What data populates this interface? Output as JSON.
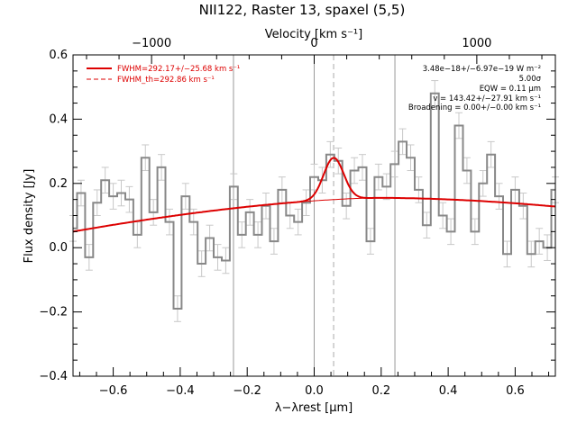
{
  "chart_data": {
    "type": "line",
    "title": "NII122, Raster 13, spaxel (5,5)",
    "xlabel": "λ−λrest [μm]",
    "ylabel": "Flux density [Jy]",
    "top_axis_label": "Velocity [km s⁻¹]",
    "xlim": [
      -0.72,
      0.72
    ],
    "ylim": [
      -0.4,
      0.6
    ],
    "x_ticks": [
      -0.6,
      -0.4,
      -0.2,
      0.0,
      0.2,
      0.4,
      0.6
    ],
    "x_tick_labels": [
      "−0.6",
      "−0.4",
      "−0.2",
      "0.0",
      "0.2",
      "0.4",
      "0.6"
    ],
    "y_ticks": [
      -0.4,
      -0.2,
      0.0,
      0.2,
      0.4,
      0.6
    ],
    "y_tick_labels": [
      "−0.4",
      "−0.2",
      "0.0",
      "0.2",
      "0.4",
      "0.6"
    ],
    "top_ticks_wavelength": [
      -0.4855,
      0.0,
      0.4855
    ],
    "top_tick_labels": [
      "−1000",
      "0",
      "1000"
    ],
    "vertical_lines": [
      -0.241,
      0.0,
      0.241
    ],
    "dashed_vertical_line": 0.058,
    "legend": {
      "placement": "top-left",
      "solid": "FWHM=292.17+/−25.68 km s⁻¹",
      "dashed": "FWHM_th=292.86 km s⁻¹"
    },
    "annotations": [
      "3.48e−18+/−6.97e−19 W m⁻²",
      "5.00σ",
      "EQW = 0.11 μm",
      "v = 143.42+/−27.91 km s⁻¹",
      "Broadening = 0.00+/−0.00 km s⁻¹"
    ],
    "series": [
      {
        "style": "step-with-errors",
        "color": "#888888",
        "x": [
          -0.72,
          -0.696,
          -0.672,
          -0.648,
          -0.624,
          -0.6,
          -0.576,
          -0.552,
          -0.528,
          -0.504,
          -0.48,
          -0.456,
          -0.432,
          -0.408,
          -0.384,
          -0.36,
          -0.336,
          -0.312,
          -0.288,
          -0.264,
          -0.24,
          -0.216,
          -0.192,
          -0.168,
          -0.144,
          -0.12,
          -0.096,
          -0.072,
          -0.048,
          -0.024,
          0.0,
          0.024,
          0.048,
          0.072,
          0.096,
          0.12,
          0.144,
          0.168,
          0.192,
          0.216,
          0.24,
          0.264,
          0.288,
          0.312,
          0.336,
          0.36,
          0.384,
          0.408,
          0.432,
          0.456,
          0.48,
          0.504,
          0.528,
          0.552,
          0.576,
          0.6,
          0.624,
          0.648,
          0.672,
          0.696,
          0.72
        ],
        "y": [
          0.06,
          0.17,
          -0.03,
          0.14,
          0.21,
          0.16,
          0.17,
          0.15,
          0.04,
          0.28,
          0.11,
          0.25,
          0.08,
          -0.19,
          0.16,
          0.08,
          -0.05,
          0.03,
          -0.03,
          -0.04,
          0.19,
          0.04,
          0.11,
          0.04,
          0.13,
          0.02,
          0.18,
          0.1,
          0.08,
          0.14,
          0.22,
          0.21,
          0.29,
          0.27,
          0.13,
          0.24,
          0.25,
          0.02,
          0.22,
          0.19,
          0.26,
          0.33,
          0.28,
          0.18,
          0.07,
          0.48,
          0.1,
          0.05,
          0.38,
          0.24,
          0.05,
          0.2,
          0.29,
          0.16,
          -0.02,
          0.18,
          0.13,
          -0.02,
          0.02,
          0.0,
          0.18
        ],
        "err": [
          0.04,
          0.04,
          0.04,
          0.04,
          0.04,
          0.04,
          0.04,
          0.04,
          0.04,
          0.04,
          0.04,
          0.04,
          0.04,
          0.04,
          0.04,
          0.04,
          0.04,
          0.04,
          0.04,
          0.04,
          0.04,
          0.04,
          0.04,
          0.04,
          0.04,
          0.04,
          0.04,
          0.04,
          0.04,
          0.04,
          0.04,
          0.04,
          0.04,
          0.04,
          0.04,
          0.04,
          0.04,
          0.04,
          0.04,
          0.04,
          0.04,
          0.04,
          0.04,
          0.04,
          0.04,
          0.04,
          0.04,
          0.04,
          0.04,
          0.04,
          0.04,
          0.04,
          0.04,
          0.04,
          0.04,
          0.04,
          0.04,
          0.04,
          0.04,
          0.04,
          0.04
        ]
      },
      {
        "style": "fit",
        "color": "#dd0000",
        "baseline": {
          "peak_x": 0.2,
          "peak_y": 0.155,
          "left_y": 0.05,
          "right_y": 0.128
        },
        "gaussian": {
          "center": 0.058,
          "amplitude": 0.13,
          "sigma": 0.03
        }
      }
    ]
  }
}
